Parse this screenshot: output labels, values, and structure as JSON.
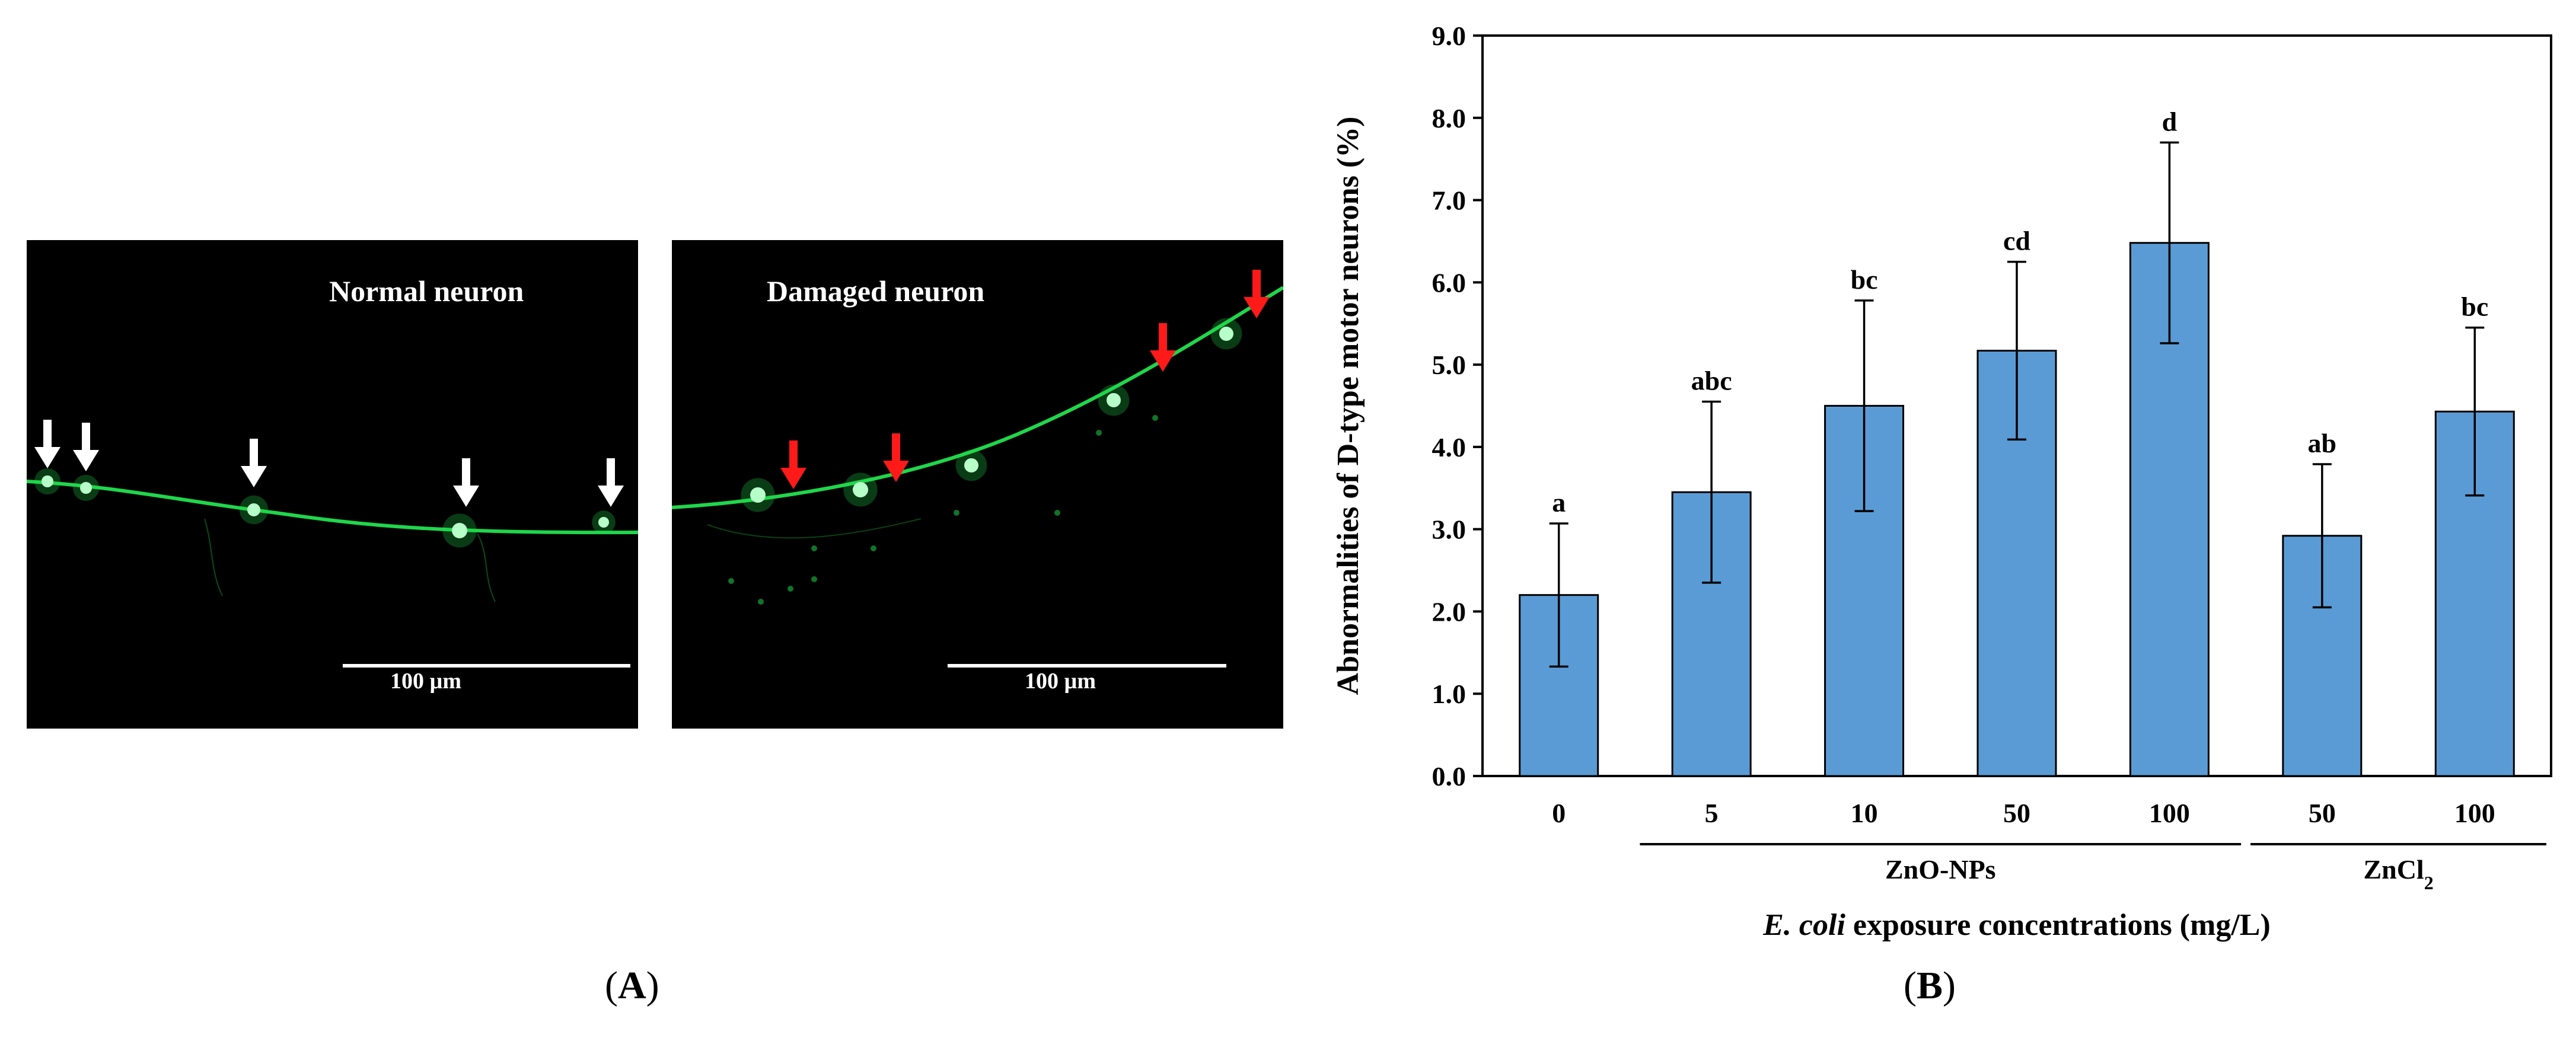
{
  "panel_a": {
    "left_title": "Normal neuron",
    "right_title": "Damaged neuron",
    "scale_bar_label": "100 µm",
    "fluorescence_color": "#1fd64a",
    "normal_arrow_color": "#ffffff",
    "damaged_arrow_color": "#ff1a1a",
    "label": "A"
  },
  "panel_b": {
    "label": "B"
  },
  "chart_data": {
    "type": "bar",
    "categories": [
      "0",
      "5",
      "10",
      "50",
      "100",
      "50",
      "100"
    ],
    "values": [
      2.2,
      3.45,
      4.5,
      5.17,
      6.48,
      2.92,
      4.43
    ],
    "errors": [
      0.87,
      1.1,
      1.28,
      1.08,
      1.22,
      0.87,
      1.02
    ],
    "significance_letters": [
      "a",
      "abc",
      "bc",
      "cd",
      "d",
      "ab",
      "bc"
    ],
    "groups": [
      {
        "label": "ZnO-NPs",
        "categories": [
          1,
          2,
          3,
          4
        ]
      },
      {
        "label_main": "ZnCl",
        "label_sub": "2",
        "categories": [
          5,
          6
        ]
      }
    ],
    "ylabel": "Abnormalities of D-type motor neurons (%)",
    "xlabel_italic": "E. coli",
    "xlabel_rest": " exposure concentrations (mg/L)",
    "ylim": [
      0,
      9
    ],
    "yticks": [
      "0.0",
      "1.0",
      "2.0",
      "3.0",
      "4.0",
      "5.0",
      "6.0",
      "7.0",
      "8.0",
      "9.0"
    ],
    "bar_color": "#5b9bd5",
    "grid": false
  }
}
